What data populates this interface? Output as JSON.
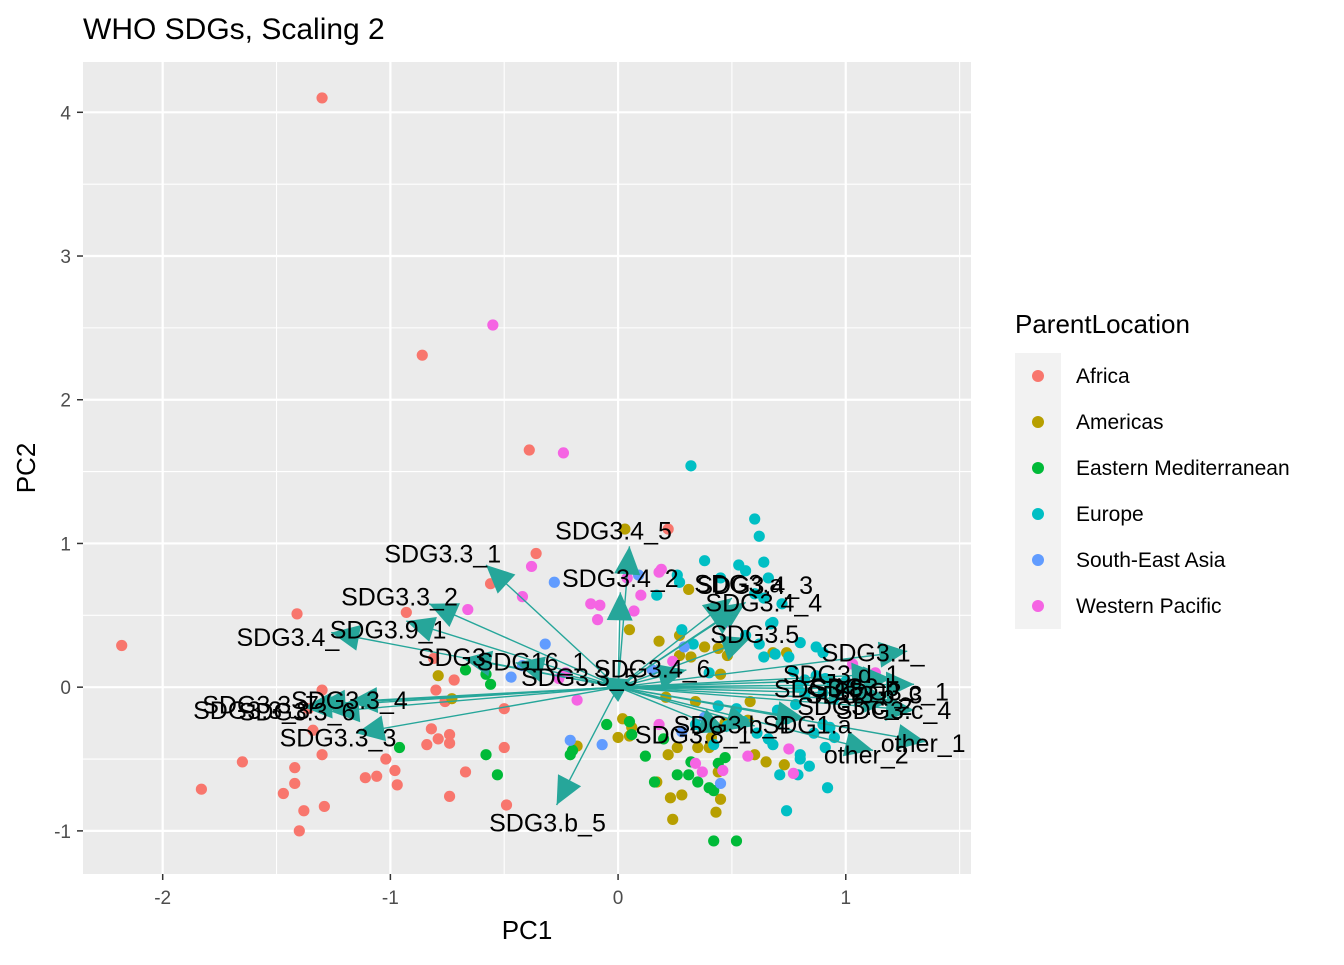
{
  "chart_data": {
    "type": "scatter",
    "title": "WHO SDGs, Scaling 2",
    "xlabel": "PC1",
    "ylabel": "PC2",
    "xlim": [
      -2.35,
      1.55
    ],
    "ylim": [
      -1.3,
      4.35
    ],
    "xticks": [
      -2,
      -1,
      0,
      1
    ],
    "yticks": [
      -1,
      0,
      1,
      2,
      3,
      4
    ],
    "x_tick_labels": [
      "-2",
      "-1",
      "0",
      "1"
    ],
    "y_tick_labels": [
      "-1",
      "0",
      "1",
      "2",
      "3",
      "4"
    ],
    "grid": true,
    "legend": {
      "title": "ParentLocation",
      "placement": "right",
      "items": [
        {
          "label": "Africa",
          "color": "#F8766D"
        },
        {
          "label": "Americas",
          "color": "#B79F00"
        },
        {
          "label": "Eastern Mediterranean",
          "color": "#00BA38"
        },
        {
          "label": "Europe",
          "color": "#00BFC4"
        },
        {
          "label": "South-East Asia",
          "color": "#619CFF"
        },
        {
          "label": "Western Pacific",
          "color": "#F564E3"
        }
      ]
    },
    "arrow_color": "#26A69A",
    "series": [
      {
        "name": "Africa",
        "color": "#F8766D",
        "points": [
          [
            -1.3,
            4.1
          ],
          [
            -0.86,
            2.31
          ],
          [
            -0.39,
            1.65
          ],
          [
            0.22,
            1.1
          ],
          [
            -0.36,
            0.93
          ],
          [
            -2.18,
            0.29
          ],
          [
            -1.41,
            0.51
          ],
          [
            -0.93,
            0.52
          ],
          [
            -0.56,
            0.72
          ],
          [
            -0.81,
            0.2
          ],
          [
            -0.72,
            0.05
          ],
          [
            -0.8,
            -0.02
          ],
          [
            -1.3,
            -0.02
          ],
          [
            -1.36,
            -0.15
          ],
          [
            -1.34,
            -0.3
          ],
          [
            -0.82,
            -0.29
          ],
          [
            -0.79,
            -0.36
          ],
          [
            -0.84,
            -0.4
          ],
          [
            -0.74,
            -0.39
          ],
          [
            -0.74,
            -0.33
          ],
          [
            -1.02,
            -0.5
          ],
          [
            -1.06,
            -0.62
          ],
          [
            -1.11,
            -0.63
          ],
          [
            -0.98,
            -0.58
          ],
          [
            -0.97,
            -0.68
          ],
          [
            -1.3,
            -0.47
          ],
          [
            -1.42,
            -0.56
          ],
          [
            -1.65,
            -0.52
          ],
          [
            -1.83,
            -0.71
          ],
          [
            -1.47,
            -0.74
          ],
          [
            -1.42,
            -0.67
          ],
          [
            -1.38,
            -0.86
          ],
          [
            -1.4,
            -1.0
          ],
          [
            -1.29,
            -0.83
          ],
          [
            -0.74,
            -0.76
          ],
          [
            -0.67,
            -0.59
          ],
          [
            -0.5,
            -0.42
          ],
          [
            -0.49,
            -0.82
          ],
          [
            -0.76,
            -0.1
          ],
          [
            -0.5,
            -0.15
          ]
        ]
      },
      {
        "name": "Americas",
        "color": "#B79F00",
        "points": [
          [
            -0.79,
            0.08
          ],
          [
            -0.73,
            -0.08
          ],
          [
            -0.18,
            -0.41
          ],
          [
            0.05,
            0.4
          ],
          [
            0.18,
            0.32
          ],
          [
            0.27,
            0.36
          ],
          [
            0.27,
            0.22
          ],
          [
            0.32,
            0.21
          ],
          [
            0.38,
            0.28
          ],
          [
            0.44,
            0.27
          ],
          [
            0.45,
            0.09
          ],
          [
            0.48,
            0.22
          ],
          [
            0.68,
            0.24
          ],
          [
            0.74,
            0.24
          ],
          [
            0.06,
            -0.28
          ],
          [
            0.02,
            -0.22
          ],
          [
            0.05,
            -0.34
          ],
          [
            0.0,
            -0.35
          ],
          [
            0.22,
            -0.47
          ],
          [
            0.26,
            -0.42
          ],
          [
            0.35,
            -0.42
          ],
          [
            0.4,
            -0.42
          ],
          [
            0.44,
            -0.59
          ],
          [
            0.17,
            -0.66
          ],
          [
            0.23,
            -0.77
          ],
          [
            0.28,
            -0.75
          ],
          [
            0.24,
            -0.92
          ],
          [
            0.43,
            -0.87
          ],
          [
            0.45,
            -0.78
          ],
          [
            0.65,
            -0.52
          ],
          [
            0.6,
            -0.47
          ],
          [
            0.73,
            -0.54
          ],
          [
            0.57,
            -0.23
          ],
          [
            0.58,
            -0.1
          ],
          [
            0.21,
            -0.07
          ],
          [
            0.34,
            -0.1
          ],
          [
            0.47,
            -0.25
          ],
          [
            0.41,
            -0.35
          ],
          [
            0.03,
            1.1
          ],
          [
            0.31,
            0.68
          ]
        ]
      },
      {
        "name": "Eastern Mediterranean",
        "color": "#00BA38",
        "points": [
          [
            -0.67,
            0.12
          ],
          [
            -0.58,
            0.09
          ],
          [
            -0.56,
            0.02
          ],
          [
            -0.58,
            -0.47
          ],
          [
            -0.53,
            -0.61
          ],
          [
            -0.2,
            -0.44
          ],
          [
            -0.21,
            -0.47
          ],
          [
            -0.05,
            -0.26
          ],
          [
            0.05,
            -0.24
          ],
          [
            0.06,
            -0.33
          ],
          [
            0.16,
            -0.66
          ],
          [
            0.26,
            -0.61
          ],
          [
            0.31,
            -0.61
          ],
          [
            0.35,
            -0.66
          ],
          [
            0.4,
            -0.7
          ],
          [
            0.42,
            -0.72
          ],
          [
            0.44,
            -0.53
          ],
          [
            0.47,
            -0.49
          ],
          [
            0.42,
            -1.07
          ],
          [
            0.52,
            -1.07
          ],
          [
            -0.96,
            -0.42
          ],
          [
            0.12,
            -0.48
          ],
          [
            0.2,
            -0.36
          ],
          [
            0.32,
            -0.52
          ]
        ]
      },
      {
        "name": "Europe",
        "color": "#00BFC4",
        "points": [
          [
            0.32,
            1.54
          ],
          [
            0.6,
            1.17
          ],
          [
            0.62,
            1.05
          ],
          [
            0.53,
            0.85
          ],
          [
            0.45,
            0.76
          ],
          [
            0.56,
            0.81
          ],
          [
            0.64,
            0.87
          ],
          [
            0.66,
            0.76
          ],
          [
            0.38,
            0.88
          ],
          [
            0.27,
            0.73
          ],
          [
            0.17,
            0.64
          ],
          [
            0.26,
            0.78
          ],
          [
            0.6,
            0.65
          ],
          [
            0.64,
            0.62
          ],
          [
            0.72,
            0.58
          ],
          [
            0.68,
            0.45
          ],
          [
            0.8,
            0.31
          ],
          [
            0.87,
            0.28
          ],
          [
            0.9,
            0.24
          ],
          [
            0.62,
            0.3
          ],
          [
            0.64,
            0.21
          ],
          [
            0.69,
            0.23
          ],
          [
            0.75,
            0.21
          ],
          [
            0.77,
            0.11
          ],
          [
            0.82,
            0.05
          ],
          [
            0.87,
            0.08
          ],
          [
            0.91,
            0.06
          ],
          [
            0.94,
            0.03
          ],
          [
            1.0,
            0.04
          ],
          [
            0.79,
            0.0
          ],
          [
            0.82,
            -0.05
          ],
          [
            0.9,
            -0.04
          ],
          [
            0.95,
            -0.08
          ],
          [
            0.78,
            -0.12
          ],
          [
            0.7,
            -0.16
          ],
          [
            0.74,
            -0.22
          ],
          [
            0.55,
            -0.24
          ],
          [
            0.61,
            -0.32
          ],
          [
            0.66,
            -0.36
          ],
          [
            0.68,
            -0.4
          ],
          [
            0.86,
            -0.32
          ],
          [
            0.9,
            -0.26
          ],
          [
            0.93,
            -0.28
          ],
          [
            0.95,
            -0.35
          ],
          [
            0.91,
            -0.42
          ],
          [
            0.8,
            -0.47
          ],
          [
            0.8,
            -0.5
          ],
          [
            0.84,
            -0.55
          ],
          [
            0.79,
            -0.61
          ],
          [
            0.71,
            -0.61
          ],
          [
            0.74,
            -0.86
          ],
          [
            0.92,
            -0.7
          ],
          [
            0.42,
            -0.4
          ],
          [
            0.48,
            -0.27
          ],
          [
            0.52,
            -0.15
          ],
          [
            0.4,
            0.1
          ],
          [
            0.28,
            0.4
          ],
          [
            0.33,
            0.3
          ],
          [
            0.56,
            0.36
          ],
          [
            0.67,
            0.44
          ],
          [
            0.34,
            -0.26
          ],
          [
            0.44,
            -0.13
          ]
        ]
      },
      {
        "name": "South-East Asia",
        "color": "#619CFF",
        "points": [
          [
            -0.28,
            0.73
          ],
          [
            -0.32,
            0.3
          ],
          [
            -0.47,
            0.07
          ],
          [
            -0.42,
            0.15
          ],
          [
            0.22,
            0.1
          ],
          [
            0.29,
            0.28
          ],
          [
            0.09,
            0.78
          ],
          [
            0.15,
            0.12
          ],
          [
            -0.21,
            -0.37
          ],
          [
            -0.07,
            -0.4
          ],
          [
            0.45,
            -0.67
          ],
          [
            0.28,
            -0.31
          ],
          [
            0.38,
            -0.21
          ]
        ]
      },
      {
        "name": "Western Pacific",
        "color": "#F564E3",
        "points": [
          [
            -0.55,
            2.52
          ],
          [
            -0.24,
            1.63
          ],
          [
            -0.38,
            0.84
          ],
          [
            -0.42,
            0.63
          ],
          [
            -0.66,
            0.54
          ],
          [
            -0.12,
            0.58
          ],
          [
            -0.08,
            0.57
          ],
          [
            -0.09,
            0.47
          ],
          [
            0.07,
            0.53
          ],
          [
            0.1,
            0.64
          ],
          [
            0.18,
            0.8
          ],
          [
            0.19,
            0.82
          ],
          [
            0.04,
            0.76
          ],
          [
            0.24,
            0.18
          ],
          [
            -0.23,
            0.1
          ],
          [
            0.18,
            -0.26
          ],
          [
            0.34,
            -0.53
          ],
          [
            0.37,
            -0.59
          ],
          [
            0.46,
            -0.58
          ],
          [
            0.57,
            -0.48
          ],
          [
            0.75,
            -0.43
          ],
          [
            0.77,
            -0.6
          ],
          [
            1.03,
            0.16
          ],
          [
            1.13,
            0.1
          ],
          [
            -0.18,
            -0.09
          ],
          [
            0.47,
            0.45
          ],
          [
            -0.26,
            0.06
          ]
        ]
      }
    ],
    "arrows": [
      {
        "label": "SDG3.4_5",
        "x": 0.05,
        "y": 0.98,
        "lx": -0.02,
        "ly": 1.09
      },
      {
        "label": "SDG3.3_1",
        "x": -0.58,
        "y": 0.85,
        "lx": -0.77,
        "ly": 0.93
      },
      {
        "label": "SDG3.4_2",
        "x": 0.01,
        "y": 0.66,
        "lx": 0.01,
        "ly": 0.76
      },
      {
        "label": "SDG3.a",
        "x": 0.5,
        "y": 0.62,
        "lx": 0.53,
        "ly": 0.72
      },
      {
        "label": "SDG3.4_3",
        "x": 0.56,
        "y": 0.59,
        "lx": 0.6,
        "ly": 0.71
      },
      {
        "label": "SDG3.4_4",
        "x": 0.53,
        "y": 0.55,
        "lx": 0.64,
        "ly": 0.59
      },
      {
        "label": "SDG3.3_2",
        "x": -0.83,
        "y": 0.58,
        "lx": -0.96,
        "ly": 0.63
      },
      {
        "label": "SDG3.9_1",
        "x": -0.93,
        "y": 0.46,
        "lx": -1.01,
        "ly": 0.4
      },
      {
        "label": "SDG3.4_",
        "x": -1.26,
        "y": 0.38,
        "lx": -1.45,
        "ly": 0.35
      },
      {
        "label": "SDG3.5",
        "x": 0.58,
        "y": 0.34,
        "lx": 0.6,
        "ly": 0.37
      },
      {
        "label": "SDG3.1_",
        "x": 1.27,
        "y": 0.25,
        "lx": 1.12,
        "ly": 0.24
      },
      {
        "label": "SDG3.d_1",
        "x": 1.15,
        "y": 0.09,
        "lx": 0.98,
        "ly": 0.09
      },
      {
        "label": "SDG3.b_",
        "x": 1.2,
        "y": 0.06,
        "lx": 1.07,
        "ly": 0.0
      },
      {
        "label": "SDG3.c_1",
        "x": 1.3,
        "y": 0.02,
        "lx": 1.2,
        "ly": -0.03
      },
      {
        "label": "SDG3.8_",
        "x": 1.05,
        "y": -0.01,
        "lx": 0.91,
        "ly": -0.01
      },
      {
        "label": "SDG3.b_3",
        "x": 1.16,
        "y": -0.05,
        "lx": 1.08,
        "ly": -0.05
      },
      {
        "label": "SDG3.c_2",
        "x": 1.2,
        "y": -0.1,
        "lx": 1.04,
        "ly": -0.13
      },
      {
        "label": "SDG3.c_4",
        "x": 1.3,
        "y": -0.16,
        "lx": 1.21,
        "ly": -0.16
      },
      {
        "label": "other_1",
        "x": 1.35,
        "y": -0.38,
        "lx": 1.34,
        "ly": -0.39
      },
      {
        "label": "other_2",
        "x": 1.12,
        "y": -0.44,
        "lx": 1.09,
        "ly": -0.47
      },
      {
        "label": "SDG1.a",
        "x": 0.82,
        "y": -0.22,
        "lx": 0.83,
        "ly": -0.26
      },
      {
        "label": "SDG3.b_4",
        "x": 0.6,
        "y": -0.27,
        "lx": 0.5,
        "ly": -0.26
      },
      {
        "label": "SDG3.8_1",
        "x": 0.48,
        "y": -0.31,
        "lx": 0.33,
        "ly": -0.33
      },
      {
        "label": "SDG3.b_5",
        "x": -0.27,
        "y": -0.82,
        "lx": -0.31,
        "ly": -0.94
      },
      {
        "label": "SDG3.4_6",
        "x": 0.3,
        "y": 0.12,
        "lx": 0.15,
        "ly": 0.13
      },
      {
        "label": "SDG3.3_5",
        "x": -0.08,
        "y": 0.07,
        "lx": -0.17,
        "ly": 0.07
      },
      {
        "label": "SDG16_1",
        "x": -0.45,
        "y": 0.17,
        "lx": -0.38,
        "ly": 0.18
      },
      {
        "label": "SDG3",
        "x": -0.68,
        "y": 0.2,
        "lx": -0.73,
        "ly": 0.21
      },
      {
        "label": "SDG3.3_4",
        "x": -1.18,
        "y": -0.1,
        "lx": -1.18,
        "ly": -0.09
      },
      {
        "label": "SDG3.3_6",
        "x": -1.26,
        "y": -0.17,
        "lx": -1.41,
        "ly": -0.17
      },
      {
        "label": "SDG3.3_3",
        "x": -1.15,
        "y": -0.32,
        "lx": -1.23,
        "ly": -0.35
      },
      {
        "label": "SDG3.3_7",
        "x": -1.32,
        "y": -0.12,
        "lx": -1.57,
        "ly": -0.12
      },
      {
        "label": "SDG3.3_8",
        "x": -1.38,
        "y": -0.14,
        "lx": -1.61,
        "ly": -0.16
      }
    ]
  }
}
